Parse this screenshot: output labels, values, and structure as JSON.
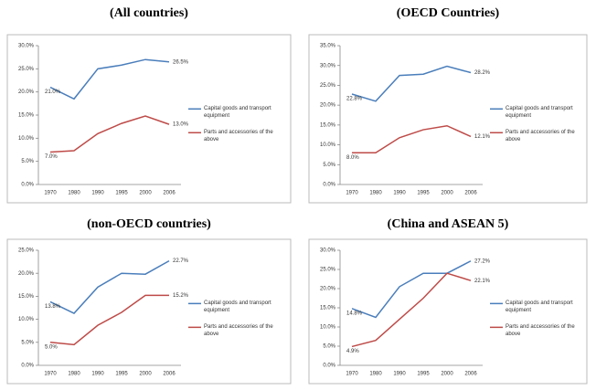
{
  "chart_data": [
    {
      "type": "line",
      "title": "(All countries)",
      "categories": [
        "1970",
        "1980",
        "1990",
        "1995",
        "2000",
        "2006"
      ],
      "ylim": [
        0,
        30
      ],
      "yticks": [
        {
          "value": 0,
          "label": "0.0%"
        },
        {
          "value": 5,
          "label": "5.0%"
        },
        {
          "value": 10,
          "label": "10.0%"
        },
        {
          "value": 15,
          "label": "15.0%"
        },
        {
          "value": 20,
          "label": "20.0%"
        },
        {
          "value": 25,
          "label": "25.0%"
        },
        {
          "value": 30,
          "label": "30.0%"
        }
      ],
      "series": [
        {
          "name": "Capital goods and transport equipment",
          "color": "#4a7ebb",
          "values": [
            21.0,
            18.5,
            25.0,
            25.8,
            27.0,
            26.5
          ],
          "value_labels": [
            "21.0%",
            null,
            null,
            null,
            null,
            "26.5%"
          ]
        },
        {
          "name": "Parts and accessories of the above",
          "color": "#be4b48",
          "values": [
            7.0,
            7.3,
            11.0,
            13.2,
            14.8,
            13.0
          ],
          "value_labels": [
            "7.0%",
            null,
            null,
            null,
            null,
            "13.0%"
          ]
        }
      ]
    },
    {
      "type": "line",
      "title": "(OECD Countries)",
      "categories": [
        "1970",
        "1980",
        "1990",
        "1995",
        "2000",
        "2006"
      ],
      "ylim": [
        0,
        35
      ],
      "yticks": [
        {
          "value": 0,
          "label": "0.0%"
        },
        {
          "value": 5,
          "label": "5.0%"
        },
        {
          "value": 10,
          "label": "10.0%"
        },
        {
          "value": 15,
          "label": "15.0%"
        },
        {
          "value": 20,
          "label": "20.0%"
        },
        {
          "value": 25,
          "label": "25.0%"
        },
        {
          "value": 30,
          "label": "30.0%"
        },
        {
          "value": 35,
          "label": "35.0%"
        }
      ],
      "series": [
        {
          "name": "Capital goods and transport equipment",
          "color": "#4a7ebb",
          "values": [
            22.8,
            21.0,
            27.5,
            27.8,
            29.8,
            28.2
          ],
          "value_labels": [
            "22.8%",
            null,
            null,
            null,
            null,
            "28.2%"
          ]
        },
        {
          "name": "Parts and accessories of the above",
          "color": "#be4b48",
          "values": [
            8.0,
            8.0,
            11.8,
            13.8,
            14.8,
            12.1
          ],
          "value_labels": [
            "8.0%",
            null,
            null,
            null,
            null,
            "12.1%"
          ]
        }
      ]
    },
    {
      "type": "line",
      "title": "(non-OECD countries)",
      "categories": [
        "1970",
        "1980",
        "1990",
        "1995",
        "2000",
        "2006"
      ],
      "ylim": [
        0,
        25
      ],
      "yticks": [
        {
          "value": 0,
          "label": "0.0%"
        },
        {
          "value": 5,
          "label": "5.0%"
        },
        {
          "value": 10,
          "label": "10.0%"
        },
        {
          "value": 15,
          "label": "15.0%"
        },
        {
          "value": 20,
          "label": "20.0%"
        },
        {
          "value": 25,
          "label": "25.0%"
        }
      ],
      "series": [
        {
          "name": "Capital goods and transport equipment",
          "color": "#4a7ebb",
          "values": [
            13.8,
            11.3,
            17.0,
            20.0,
            19.8,
            22.7
          ],
          "value_labels": [
            "13.8%",
            null,
            null,
            null,
            null,
            "22.7%"
          ]
        },
        {
          "name": "Parts and accessories of the above",
          "color": "#be4b48",
          "values": [
            5.0,
            4.5,
            8.7,
            11.5,
            15.2,
            15.2
          ],
          "value_labels": [
            "5.0%",
            null,
            null,
            null,
            null,
            "15.2%"
          ]
        }
      ]
    },
    {
      "type": "line",
      "title": "(China and ASEAN 5)",
      "categories": [
        "1970",
        "1980",
        "1990",
        "1995",
        "2000",
        "2006"
      ],
      "ylim": [
        0,
        30
      ],
      "yticks": [
        {
          "value": 0,
          "label": "0.0%"
        },
        {
          "value": 5,
          "label": "5.0%"
        },
        {
          "value": 10,
          "label": "10.0%"
        },
        {
          "value": 15,
          "label": "15.0%"
        },
        {
          "value": 20,
          "label": "20.0%"
        },
        {
          "value": 25,
          "label": "25.0%"
        },
        {
          "value": 30,
          "label": "30.0%"
        }
      ],
      "series": [
        {
          "name": "Capital goods and transport equipment",
          "color": "#4a7ebb",
          "values": [
            14.8,
            12.5,
            20.5,
            24.0,
            24.0,
            27.2
          ],
          "value_labels": [
            "14.8%",
            null,
            null,
            null,
            null,
            "27.2%"
          ]
        },
        {
          "name": "Parts and accessories of the above",
          "color": "#be4b48",
          "values": [
            4.9,
            6.5,
            12.0,
            17.5,
            24.0,
            22.1
          ],
          "value_labels": [
            "4.9%",
            null,
            null,
            null,
            null,
            "22.1%"
          ]
        }
      ]
    }
  ]
}
